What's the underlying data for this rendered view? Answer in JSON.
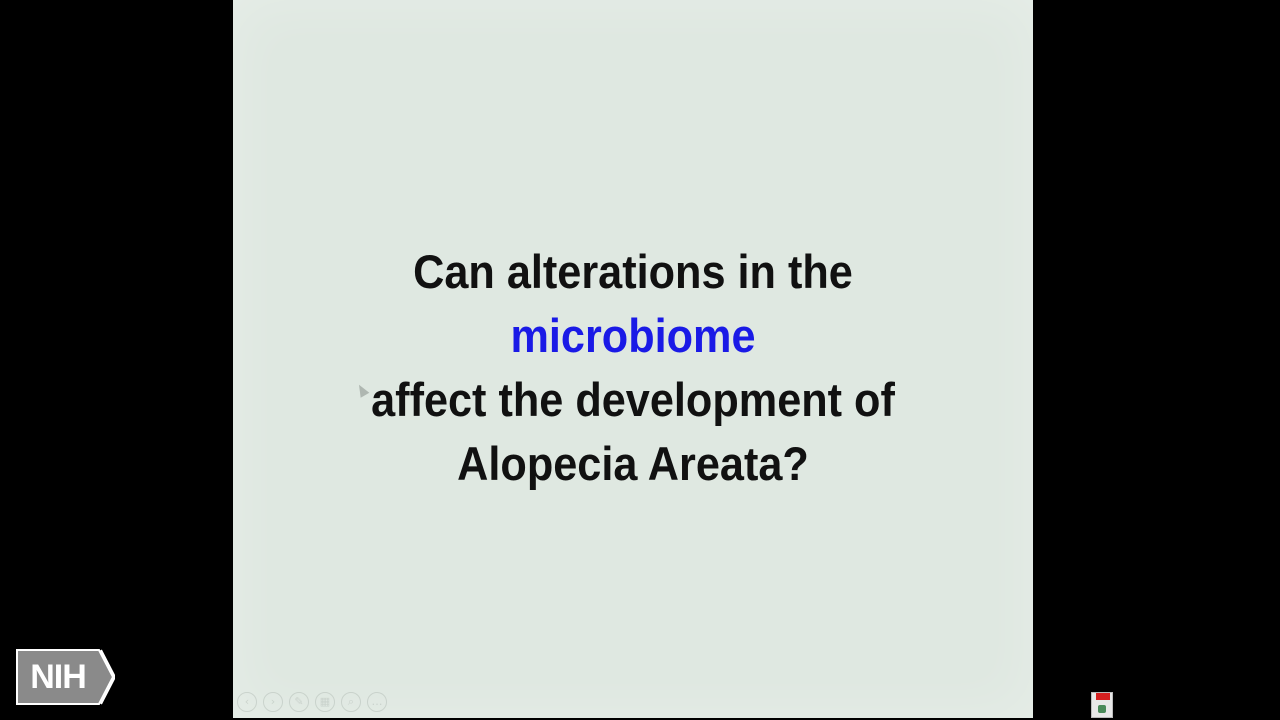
{
  "slide": {
    "line1": "Can alterations in the",
    "line2": "microbiome",
    "line3": "affect the development of",
    "line4": "Alopecia Areata?"
  },
  "logo": {
    "text": "NIH"
  },
  "colors": {
    "background": "#000000",
    "slide_background": "#dfe8e1",
    "text": "#111111",
    "highlight": "#1a1ae6"
  },
  "icons": {
    "slideshow_controls": [
      "previous-icon",
      "next-icon",
      "pen-icon",
      "grid-icon",
      "zoom-icon",
      "more-icon"
    ],
    "tray": "presentation-app-icon"
  }
}
